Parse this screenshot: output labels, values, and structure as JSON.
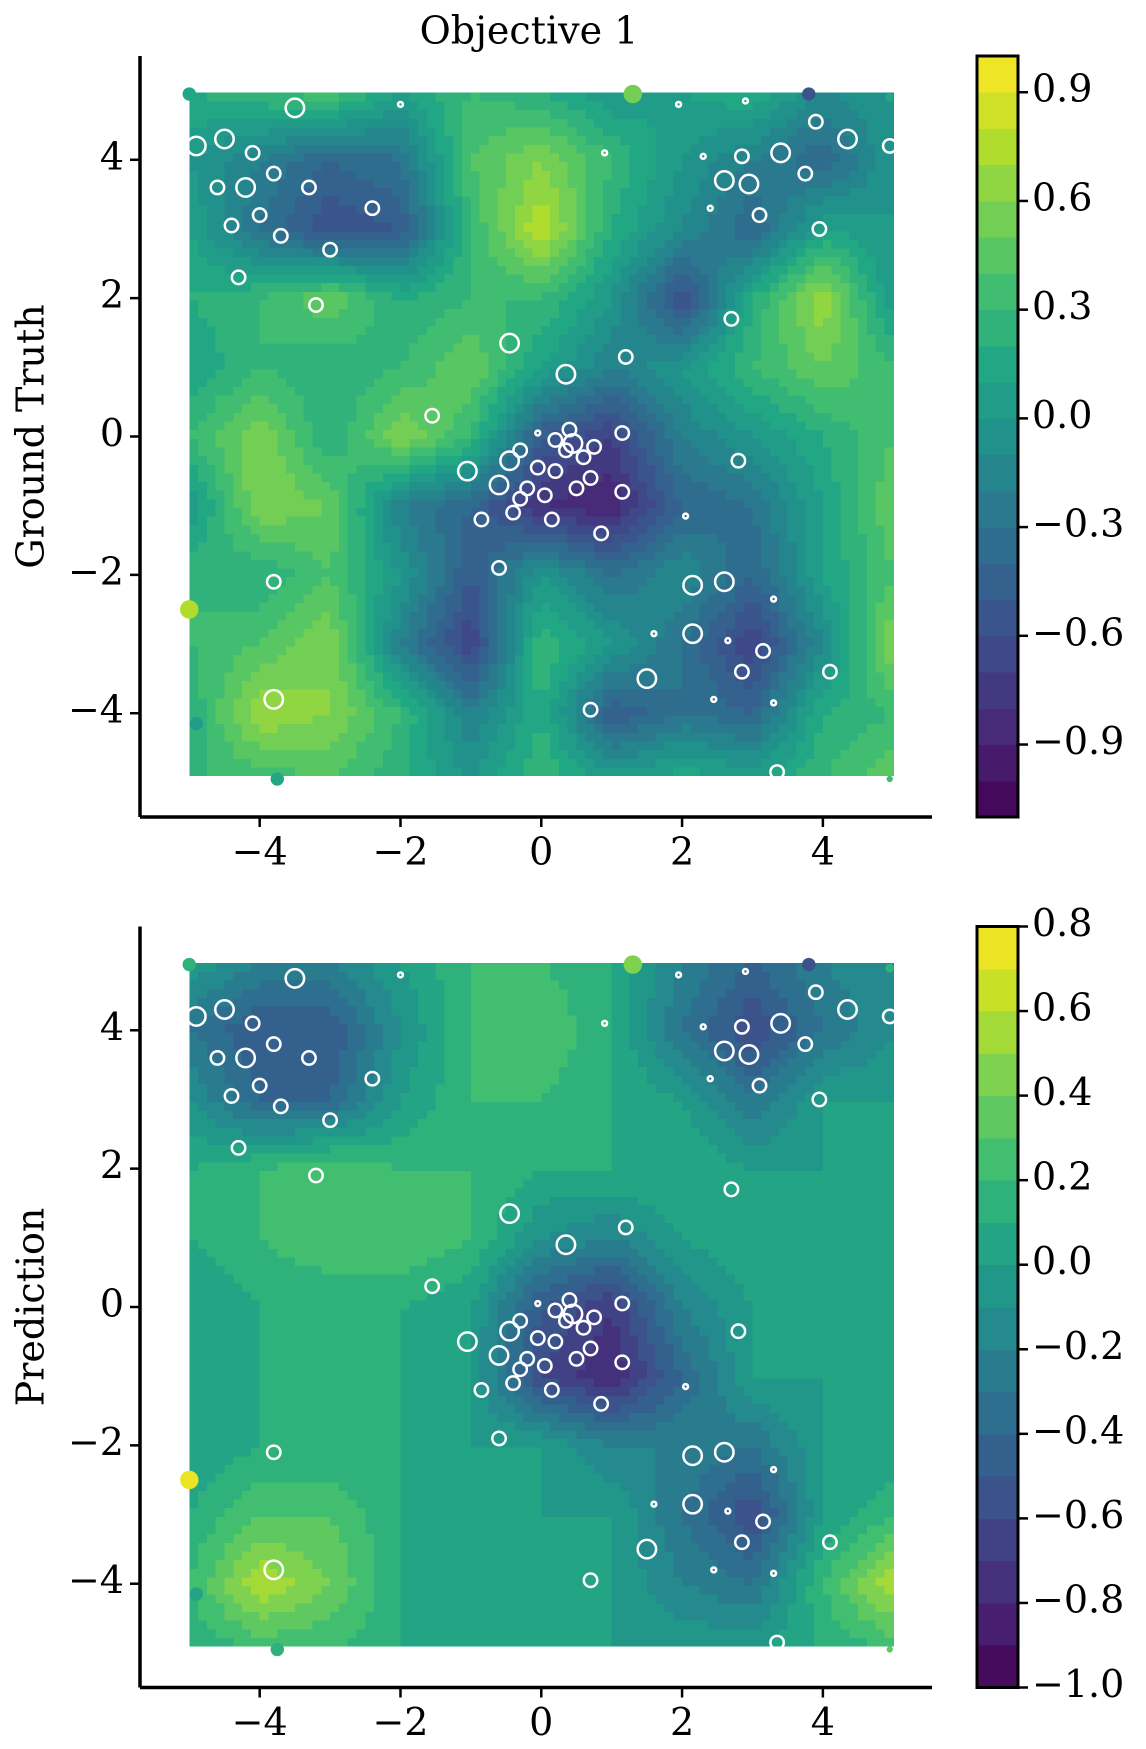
{
  "chart_data": [
    {
      "type": "contour",
      "title": "Objective 1",
      "ylabel": "Ground Truth",
      "colormap": "viridis",
      "xlim": [
        -5.7,
        5.55
      ],
      "ylim": [
        -5.5,
        5.5
      ],
      "xticks": [
        {
          "value": -4,
          "label": "−4"
        },
        {
          "value": -2,
          "label": "−2"
        },
        0,
        2,
        4
      ],
      "yticks": [
        {
          "value": -4,
          "label": "−4"
        },
        {
          "value": -2,
          "label": "−2"
        },
        0,
        2,
        4
      ],
      "clim": [
        -1.1,
        1.0
      ],
      "levels": 21,
      "cticks": [
        0.9,
        0.6,
        0.3,
        {
          "value": 0,
          "label": "0.0"
        },
        {
          "value": -0.3,
          "label": "−0.3"
        },
        {
          "value": -0.6,
          "label": "−0.6"
        },
        {
          "value": -0.9,
          "label": "−0.9"
        }
      ],
      "grid_x": [
        -5,
        -4,
        -3,
        -2,
        -1,
        0,
        1,
        2,
        3,
        4,
        5
      ],
      "grid_y": [
        5,
        4,
        3,
        2,
        1,
        0,
        -1,
        -2,
        -3,
        -4,
        -5
      ],
      "z": [
        [
          0.2,
          0.3,
          0.4,
          0.1,
          0.3,
          0.2,
          0.0,
          0.1,
          0.2,
          -0.1,
          0.0
        ],
        [
          0.0,
          -0.2,
          -0.4,
          -0.3,
          0.4,
          0.6,
          0.3,
          0.0,
          -0.2,
          -0.4,
          0.0
        ],
        [
          0.1,
          -0.3,
          -0.6,
          -0.5,
          0.3,
          0.8,
          0.2,
          -0.1,
          -0.4,
          0.1,
          0.0
        ],
        [
          0.2,
          0.3,
          0.5,
          0.2,
          0.3,
          0.3,
          0.0,
          -0.6,
          0.2,
          0.7,
          0.0
        ],
        [
          0.1,
          0.3,
          0.2,
          0.3,
          0.5,
          0.1,
          -0.2,
          0.0,
          0.3,
          0.5,
          0.3
        ],
        [
          0.3,
          0.6,
          0.2,
          0.6,
          0.3,
          -0.5,
          -0.7,
          -0.2,
          0.0,
          0.2,
          0.4
        ],
        [
          0.0,
          0.6,
          0.5,
          -0.2,
          -0.4,
          -0.8,
          -0.9,
          -0.4,
          -0.3,
          0.1,
          0.5
        ],
        [
          0.3,
          0.2,
          0.4,
          0.0,
          -0.5,
          0.0,
          -0.3,
          -0.1,
          -0.4,
          0.1,
          0.4
        ],
        [
          0.3,
          0.4,
          0.6,
          -0.2,
          -0.7,
          0.3,
          0.0,
          -0.3,
          -0.7,
          -0.1,
          0.6
        ],
        [
          0.2,
          0.7,
          0.6,
          0.3,
          -0.2,
          0.2,
          -0.5,
          -0.3,
          -0.4,
          0.2,
          0.3
        ],
        [
          0.3,
          0.3,
          0.4,
          0.2,
          0.0,
          0.3,
          0.1,
          0.2,
          0.1,
          0.3,
          0.5
        ]
      ]
    },
    {
      "type": "contour",
      "ylabel": "Prediction",
      "colormap": "viridis",
      "xlim": [
        -5.7,
        5.55
      ],
      "ylim": [
        -5.5,
        5.5
      ],
      "xticks": [
        {
          "value": -4,
          "label": "−4"
        },
        {
          "value": -2,
          "label": "−2"
        },
        0,
        2,
        4
      ],
      "yticks": [
        {
          "value": -4,
          "label": "−4"
        },
        {
          "value": -2,
          "label": "−2"
        },
        0,
        2,
        4
      ],
      "clim": [
        -1.0,
        0.8
      ],
      "levels": 18,
      "cticks": [
        0.8,
        0.6,
        0.4,
        0.2,
        {
          "value": 0,
          "label": "0.0"
        },
        {
          "value": -0.2,
          "label": "−0.2"
        },
        {
          "value": -0.4,
          "label": "−0.4"
        },
        {
          "value": -0.6,
          "label": "−0.6"
        },
        {
          "value": -0.8,
          "label": "−0.8"
        },
        {
          "value": -1.0,
          "label": "−1.0"
        }
      ],
      "grid_x": [
        -5,
        -4,
        -3,
        -2,
        -1,
        0,
        1,
        2,
        3,
        4,
        5
      ],
      "grid_y": [
        5,
        4,
        3,
        2,
        1,
        0,
        -1,
        -2,
        -3,
        -4,
        -5
      ],
      "z": [
        [
          0.0,
          -0.2,
          -0.2,
          0.0,
          0.2,
          0.2,
          0.1,
          -0.2,
          -0.4,
          -0.2,
          -0.1
        ],
        [
          -0.3,
          -0.5,
          -0.5,
          -0.1,
          0.2,
          0.3,
          0.1,
          -0.3,
          -0.6,
          -0.3,
          -0.1
        ],
        [
          -0.1,
          -0.4,
          -0.4,
          0.0,
          0.2,
          0.2,
          0.1,
          0.0,
          -0.3,
          0.0,
          0.0
        ],
        [
          0.1,
          0.2,
          0.3,
          0.2,
          0.2,
          0.1,
          0.1,
          0.1,
          0.0,
          0.0,
          0.0
        ],
        [
          0.1,
          0.2,
          0.3,
          0.3,
          0.2,
          -0.1,
          -0.2,
          0.0,
          0.1,
          0.0,
          0.0
        ],
        [
          0.0,
          0.1,
          0.1,
          0.1,
          0.0,
          -0.5,
          -0.7,
          -0.2,
          0.0,
          0.0,
          0.0
        ],
        [
          0.0,
          0.1,
          0.1,
          0.1,
          0.0,
          -0.6,
          -0.8,
          -0.4,
          0.0,
          0.0,
          0.0
        ],
        [
          0.0,
          0.1,
          0.1,
          0.1,
          0.0,
          0.0,
          -0.2,
          -0.2,
          -0.3,
          0.0,
          0.0
        ],
        [
          0.1,
          0.3,
          0.3,
          0.1,
          0.0,
          0.0,
          0.0,
          -0.3,
          -0.6,
          0.0,
          0.2
        ],
        [
          0.2,
          0.6,
          0.4,
          0.1,
          0.0,
          0.0,
          0.0,
          -0.2,
          -0.3,
          0.2,
          0.6
        ],
        [
          0.1,
          0.2,
          0.2,
          0.1,
          0.0,
          0.0,
          0.0,
          0.0,
          0.0,
          0.1,
          0.2
        ]
      ]
    }
  ],
  "points": {
    "x": [
      -3.5,
      -2,
      1.95,
      2.9,
      3.9,
      4.35,
      4.95,
      -4.9,
      -4.5,
      -4.1,
      -4.6,
      -4.2,
      -3.8,
      -3.3,
      -4.4,
      -4.0,
      -3.7,
      -3.0,
      -2.4,
      -4.3,
      -3.2,
      0.9,
      2.3,
      2.85,
      3.4,
      2.6,
      2.95,
      3.75,
      2.4,
      3.1,
      3.95,
      2.7,
      -0.45,
      0.35,
      1.2,
      -1.55,
      -1.05,
      -0.6,
      -0.45,
      -0.3,
      -0.4,
      -0.2,
      -0.05,
      0.05,
      0.2,
      0.35,
      0.45,
      0.6,
      0.7,
      0.5,
      0.2,
      -0.3,
      -0.05,
      0.4,
      0.75,
      1.15,
      1.15,
      0.85,
      0.15,
      -0.85,
      2.05,
      -3.8,
      -0.6,
      2.15,
      2.6,
      3.3,
      1.6,
      2.15,
      2.65,
      3.15,
      2.85,
      1.5,
      4.1,
      2.45,
      3.3,
      0.7,
      -3.8,
      3.35,
      2.8
    ],
    "y": [
      4.75,
      4.8,
      4.8,
      4.85,
      4.55,
      4.3,
      4.2,
      4.2,
      4.3,
      4.1,
      3.6,
      3.6,
      3.8,
      3.6,
      3.05,
      3.2,
      2.9,
      2.7,
      3.3,
      2.3,
      1.9,
      4.1,
      4.05,
      4.05,
      4.1,
      3.7,
      3.65,
      3.8,
      3.3,
      3.2,
      3.0,
      1.7,
      1.35,
      0.9,
      1.15,
      0.3,
      -0.5,
      -0.7,
      -0.35,
      -0.9,
      -1.1,
      -0.75,
      -0.45,
      -0.85,
      -0.5,
      -0.2,
      -0.1,
      -0.3,
      -0.6,
      -0.75,
      -0.05,
      -0.2,
      0.05,
      0.1,
      -0.15,
      0.05,
      -0.8,
      -1.4,
      -1.2,
      -1.2,
      -1.15,
      -2.1,
      -1.9,
      -2.15,
      -2.1,
      -2.35,
      -2.85,
      -2.85,
      -2.95,
      -3.1,
      -3.4,
      -3.5,
      -3.4,
      -3.8,
      -3.85,
      -3.95,
      -3.8,
      -4.85,
      -0.35
    ],
    "sizes": [
      85,
      6,
      6,
      6,
      45,
      85,
      45,
      85,
      85,
      45,
      45,
      85,
      45,
      45,
      45,
      45,
      45,
      45,
      45,
      45,
      45,
      6,
      6,
      45,
      85,
      85,
      85,
      45,
      6,
      45,
      45,
      45,
      85,
      85,
      45,
      45,
      85,
      85,
      85,
      45,
      45,
      45,
      45,
      45,
      45,
      45,
      85,
      45,
      45,
      45,
      45,
      45,
      6,
      45,
      45,
      45,
      45,
      45,
      45,
      45,
      6,
      45,
      45,
      85,
      85,
      6,
      6,
      85,
      6,
      45,
      45,
      85,
      45,
      6,
      6,
      45,
      85,
      45,
      45
    ]
  },
  "boundary_points": {
    "x": [
      -5,
      1.3,
      3.8,
      4.95,
      -5,
      -4.9,
      -3.75,
      4.95
    ],
    "y": [
      4.95,
      4.95,
      4.95,
      4.9,
      -2.5,
      -4.15,
      -4.95,
      -4.95
    ],
    "sizes": [
      45,
      85,
      45,
      20,
      85,
      45,
      45,
      10
    ],
    "values": [
      0.1,
      0.5,
      -0.6,
      0.1,
      0.7,
      0.0,
      0.1,
      0.3
    ]
  }
}
